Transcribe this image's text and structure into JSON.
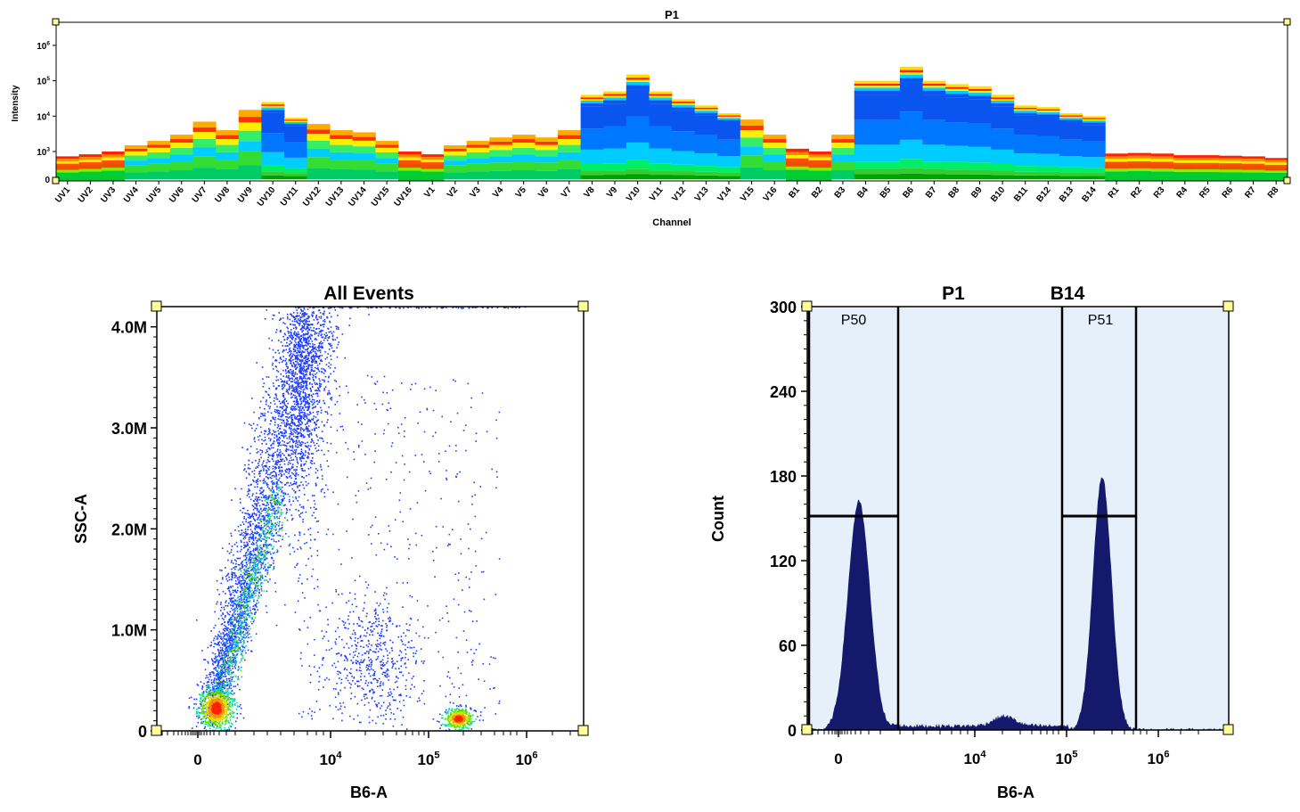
{
  "colors": {
    "plot_border": "#000000",
    "handle_fill": "#ffff99",
    "histogram_fill": "#15196b",
    "gate_fill": "#e6f0fb",
    "dot_color": "#1f3cff"
  },
  "spectrum": {
    "title": "P1",
    "ylabel": "Intensity",
    "xlabel": "Channel"
  },
  "scatter": {
    "title": "All Events",
    "xlabel": "B6-A",
    "ylabel": "SSC-A"
  },
  "histogram": {
    "title_left": "P1",
    "title_right": "B14",
    "xlabel": "B6-A",
    "ylabel": "Count",
    "gate_labels": [
      "P50",
      "P51"
    ]
  },
  "chart_data": [
    {
      "type": "heatmap",
      "title": "P1",
      "xlabel": "Channel",
      "ylabel": "Intensity",
      "y_scale": "log",
      "y_ticks": [
        "0",
        "10^3",
        "10^4",
        "10^5",
        "10^6"
      ],
      "categories": [
        "UV1",
        "UV2",
        "UV3",
        "UV4",
        "UV5",
        "UV6",
        "UV7",
        "UV8",
        "UV9",
        "UV10",
        "UV11",
        "UV12",
        "UV13",
        "UV14",
        "UV15",
        "UV16",
        "V1",
        "V2",
        "V3",
        "V4",
        "V5",
        "V6",
        "V7",
        "V8",
        "V9",
        "V10",
        "V11",
        "V12",
        "V13",
        "V14",
        "V15",
        "V16",
        "B1",
        "B2",
        "B3",
        "B4",
        "B5",
        "B6",
        "B7",
        "B8",
        "B9",
        "B10",
        "B11",
        "B12",
        "B13",
        "B14",
        "R1",
        "R2",
        "R3",
        "R4",
        "R5",
        "R6",
        "R7",
        "R8"
      ],
      "values": [
        300,
        500,
        1000,
        1500,
        2000,
        3000,
        7000,
        4000,
        15000,
        25000,
        9000,
        6000,
        4000,
        3500,
        2000,
        1000,
        500,
        1500,
        2000,
        2500,
        3000,
        2500,
        4000,
        40000,
        50000,
        150000,
        50000,
        30000,
        20000,
        12000,
        8000,
        3000,
        1200,
        1000,
        3000,
        100000,
        100000,
        250000,
        100000,
        80000,
        70000,
        40000,
        20000,
        18000,
        12000,
        10000,
        600,
        700,
        600,
        400,
        400,
        350,
        300,
        200
      ],
      "legend": "none",
      "grid": false
    },
    {
      "type": "scatter",
      "title": "All Events",
      "xlabel": "B6-A",
      "ylabel": "SSC-A",
      "x_scale": "biexponential",
      "x_ticks": [
        "0",
        "10^4",
        "10^5",
        "10^6"
      ],
      "y_ticks": [
        "0",
        "1.0M",
        "2.0M",
        "3.0M",
        "4.0M"
      ],
      "ylim": [
        0,
        4200000
      ],
      "populations": [
        {
          "x": 400,
          "y": 300000
        },
        {
          "x": 200000,
          "y": 250000
        }
      ],
      "grid": false
    },
    {
      "type": "area",
      "title": "P1     B14",
      "xlabel": "B6-A",
      "ylabel": "Count",
      "x_scale": "biexponential",
      "x_ticks": [
        "0",
        "10^4",
        "10^5",
        "10^6"
      ],
      "y_ticks": [
        0,
        60,
        120,
        180,
        240,
        300
      ],
      "ylim": [
        0,
        300
      ],
      "peaks": [
        {
          "x": 400,
          "count": 162
        },
        {
          "x": 20000,
          "count": 8
        },
        {
          "x": 200000,
          "count": 180
        }
      ],
      "gates": [
        {
          "label": "P50",
          "x_range": [
            -700,
            2000
          ]
        },
        {
          "label": "P51",
          "x_range": [
            80000,
            450000
          ]
        }
      ],
      "grid": false
    }
  ]
}
